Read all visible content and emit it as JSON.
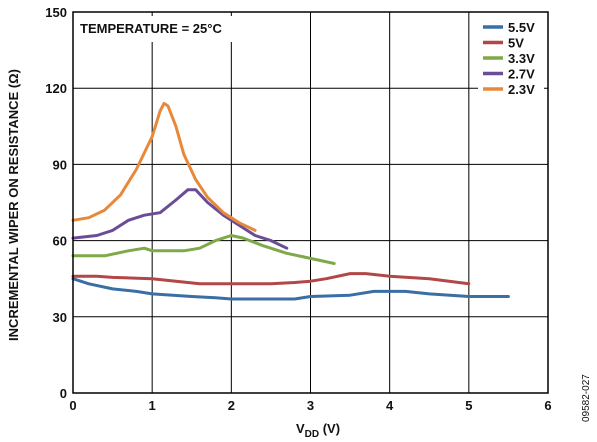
{
  "chart_data": {
    "type": "line",
    "xlabel_main": "V",
    "xlabel_sub": "DD",
    "xlabel_unit": " (V)",
    "ylabel": "INCREMENTAL WIPER ON RESISTANCE (Ω)",
    "annotation": "TEMPERATURE = 25°C",
    "figure_id": "09582-027",
    "xlim": [
      0,
      6
    ],
    "ylim": [
      0,
      150
    ],
    "xticks": [
      "0",
      "1",
      "2",
      "3",
      "4",
      "5",
      "6"
    ],
    "yticks": [
      "0",
      "30",
      "60",
      "90",
      "120",
      "150"
    ],
    "grid": true,
    "legend_position": "top-right",
    "series": [
      {
        "name": "5.5V",
        "color": "#3a6ea5",
        "points": [
          [
            0.0,
            45
          ],
          [
            0.2,
            43
          ],
          [
            0.5,
            41
          ],
          [
            0.8,
            40
          ],
          [
            1.0,
            39
          ],
          [
            1.5,
            38
          ],
          [
            1.8,
            37.5
          ],
          [
            2.0,
            37
          ],
          [
            2.5,
            37
          ],
          [
            2.8,
            37
          ],
          [
            3.0,
            38
          ],
          [
            3.5,
            38.5
          ],
          [
            3.8,
            40
          ],
          [
            4.2,
            40
          ],
          [
            4.5,
            39
          ],
          [
            5.0,
            38
          ],
          [
            5.5,
            38
          ]
        ]
      },
      {
        "name": "5V",
        "color": "#b34747",
        "points": [
          [
            0.0,
            46
          ],
          [
            0.3,
            46
          ],
          [
            0.5,
            45.5
          ],
          [
            1.0,
            45
          ],
          [
            1.3,
            44
          ],
          [
            1.6,
            43
          ],
          [
            2.0,
            43
          ],
          [
            2.5,
            43
          ],
          [
            2.8,
            43.5
          ],
          [
            3.0,
            44
          ],
          [
            3.2,
            45
          ],
          [
            3.5,
            47
          ],
          [
            3.7,
            47
          ],
          [
            4.0,
            46
          ],
          [
            4.5,
            45
          ],
          [
            5.0,
            43
          ]
        ]
      },
      {
        "name": "3.3V",
        "color": "#7fa849",
        "points": [
          [
            0.0,
            54
          ],
          [
            0.4,
            54
          ],
          [
            0.7,
            56
          ],
          [
            0.9,
            57
          ],
          [
            1.0,
            56
          ],
          [
            1.2,
            56
          ],
          [
            1.4,
            56
          ],
          [
            1.6,
            57
          ],
          [
            1.8,
            60
          ],
          [
            2.0,
            62
          ],
          [
            2.15,
            61
          ],
          [
            2.4,
            58
          ],
          [
            2.7,
            55
          ],
          [
            3.0,
            53
          ],
          [
            3.3,
            51
          ]
        ]
      },
      {
        "name": "2.7V",
        "color": "#6b4d96",
        "points": [
          [
            0.0,
            61
          ],
          [
            0.3,
            62
          ],
          [
            0.5,
            64
          ],
          [
            0.7,
            68
          ],
          [
            0.9,
            70
          ],
          [
            1.1,
            71
          ],
          [
            1.3,
            76
          ],
          [
            1.45,
            80
          ],
          [
            1.55,
            80
          ],
          [
            1.7,
            75
          ],
          [
            1.9,
            70
          ],
          [
            2.1,
            66
          ],
          [
            2.3,
            62
          ],
          [
            2.5,
            60
          ],
          [
            2.7,
            57
          ]
        ]
      },
      {
        "name": "2.3V",
        "color": "#e8883a",
        "points": [
          [
            0.0,
            68
          ],
          [
            0.2,
            69
          ],
          [
            0.4,
            72
          ],
          [
            0.6,
            78
          ],
          [
            0.8,
            88
          ],
          [
            1.0,
            101
          ],
          [
            1.1,
            111
          ],
          [
            1.15,
            114
          ],
          [
            1.2,
            113
          ],
          [
            1.3,
            105
          ],
          [
            1.4,
            94
          ],
          [
            1.55,
            84
          ],
          [
            1.7,
            77
          ],
          [
            1.9,
            71
          ],
          [
            2.1,
            67
          ],
          [
            2.3,
            64
          ]
        ]
      }
    ]
  }
}
